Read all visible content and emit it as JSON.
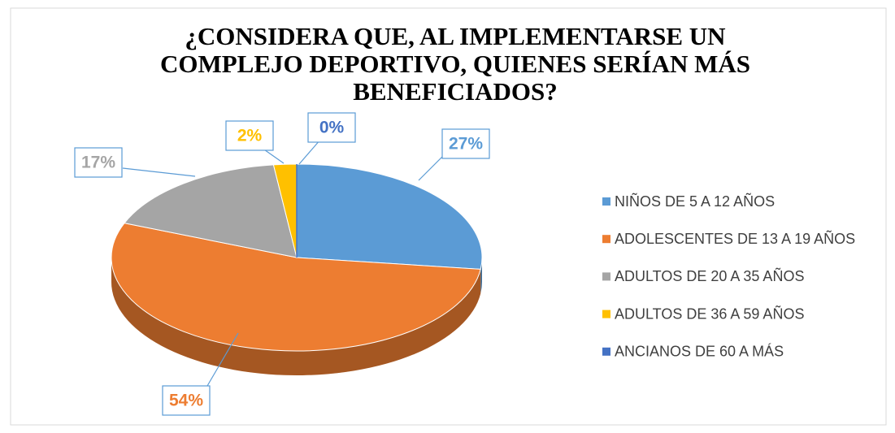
{
  "chart_data": {
    "type": "pie",
    "title": "¿CONSIDERA QUE, AL IMPLEMENTARSE UN COMPLEJO DEPORTIVO, QUIENES SERÍAN MÁS BENEFICIADOS?",
    "categories": [
      "NIÑOS DE 5 A 12 AÑOS",
      "ADOLESCENTES DE 13 A 19 AÑOS",
      "ADULTOS DE 20 A 35 AÑOS",
      "ADULTOS DE 36 A 59 AÑOS",
      "ANCIANOS DE 60 A MÁS"
    ],
    "values": [
      27,
      54,
      17,
      2,
      0
    ],
    "value_labels": [
      "27%",
      "54%",
      "17%",
      "2%",
      "0%"
    ],
    "colors": [
      "#5b9bd5",
      "#ed7d31",
      "#a5a5a5",
      "#ffc000",
      "#4472c4"
    ],
    "legend": "right"
  }
}
